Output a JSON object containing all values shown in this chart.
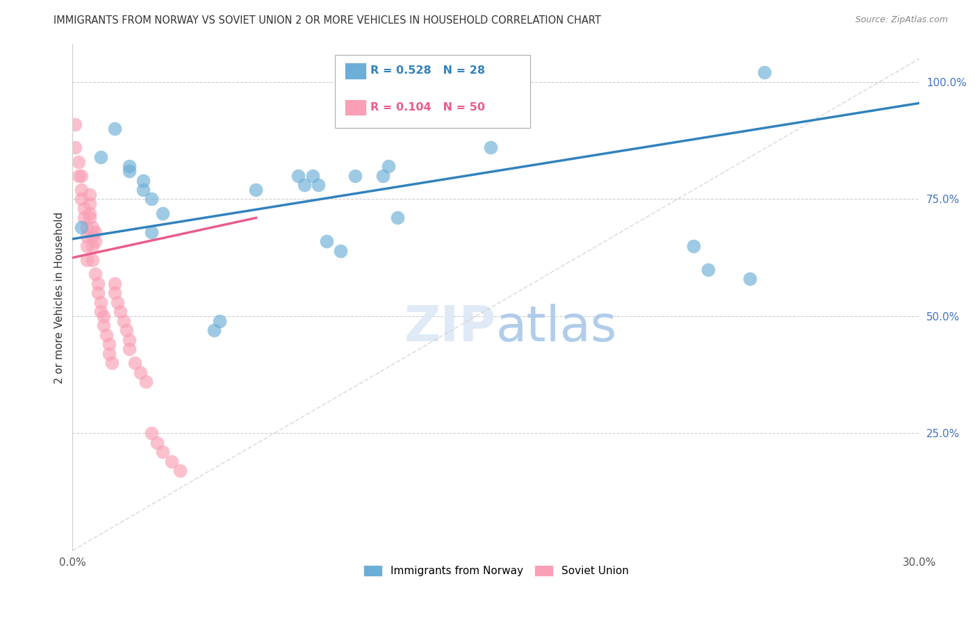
{
  "title": "IMMIGRANTS FROM NORWAY VS SOVIET UNION 2 OR MORE VEHICLES IN HOUSEHOLD CORRELATION CHART",
  "source": "Source: ZipAtlas.com",
  "ylabel": "2 or more Vehicles in Household",
  "norway_color": "#6baed6",
  "soviet_color": "#fa9fb5",
  "norway_line_color": "#3182bd",
  "soviet_line_color": "#e85d8a",
  "diagonal_color": "#d0d0d0",
  "background_color": "#ffffff",
  "grid_color": "#cccccc",
  "title_color": "#333333",
  "source_color": "#888888",
  "xlim": [
    0.0,
    0.3
  ],
  "ylim": [
    0.0,
    1.08
  ],
  "legend_norway_R": "R = 0.528",
  "legend_norway_N": "N = 28",
  "legend_soviet_R": "R = 0.104",
  "legend_soviet_N": "N = 50",
  "norway_line_x0": 0.0,
  "norway_line_y0": 0.665,
  "norway_line_x1": 0.3,
  "norway_line_y1": 0.955,
  "soviet_line_x0": 0.0,
  "soviet_line_y0": 0.625,
  "soviet_line_x1": 0.065,
  "soviet_line_y1": 0.71,
  "norway_points_x": [
    0.003,
    0.015,
    0.01,
    0.02,
    0.025,
    0.02,
    0.025,
    0.028,
    0.028,
    0.032,
    0.05,
    0.052,
    0.065,
    0.08,
    0.082,
    0.085,
    0.087,
    0.09,
    0.095,
    0.1,
    0.11,
    0.112,
    0.115,
    0.148,
    0.22,
    0.225,
    0.24,
    0.245
  ],
  "norway_points_y": [
    0.69,
    0.9,
    0.84,
    0.82,
    0.79,
    0.81,
    0.77,
    0.75,
    0.68,
    0.72,
    0.47,
    0.49,
    0.77,
    0.8,
    0.78,
    0.8,
    0.78,
    0.66,
    0.64,
    0.8,
    0.8,
    0.82,
    0.71,
    0.86,
    0.65,
    0.6,
    0.58,
    1.02
  ],
  "soviet_points_x": [
    0.001,
    0.001,
    0.002,
    0.002,
    0.003,
    0.003,
    0.003,
    0.004,
    0.004,
    0.005,
    0.005,
    0.005,
    0.005,
    0.006,
    0.006,
    0.006,
    0.006,
    0.007,
    0.007,
    0.007,
    0.007,
    0.008,
    0.008,
    0.008,
    0.009,
    0.009,
    0.01,
    0.01,
    0.011,
    0.011,
    0.012,
    0.013,
    0.013,
    0.014,
    0.015,
    0.015,
    0.016,
    0.017,
    0.018,
    0.019,
    0.02,
    0.02,
    0.022,
    0.024,
    0.026,
    0.028,
    0.03,
    0.032,
    0.035,
    0.038
  ],
  "soviet_points_y": [
    0.91,
    0.86,
    0.83,
    0.8,
    0.8,
    0.77,
    0.75,
    0.73,
    0.71,
    0.69,
    0.67,
    0.65,
    0.62,
    0.76,
    0.74,
    0.72,
    0.71,
    0.69,
    0.67,
    0.65,
    0.62,
    0.68,
    0.66,
    0.59,
    0.57,
    0.55,
    0.53,
    0.51,
    0.5,
    0.48,
    0.46,
    0.44,
    0.42,
    0.4,
    0.57,
    0.55,
    0.53,
    0.51,
    0.49,
    0.47,
    0.45,
    0.43,
    0.4,
    0.38,
    0.36,
    0.25,
    0.23,
    0.21,
    0.19,
    0.17
  ]
}
